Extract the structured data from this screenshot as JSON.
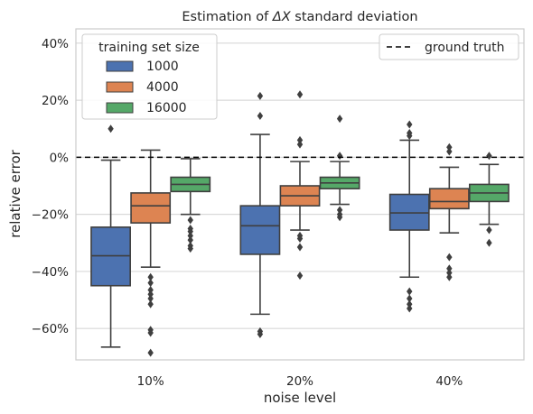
{
  "chart_data": {
    "type": "box",
    "title_prefix": "Estimation of ",
    "title_math": "ΔX",
    "title_suffix": " standard deviation",
    "xlabel": "noise level",
    "ylabel": "relative error",
    "categories": [
      "10%",
      "20%",
      "40%"
    ],
    "ylim": [
      -71,
      45
    ],
    "yticks": [
      -60,
      -40,
      -20,
      0,
      20,
      40
    ],
    "ytick_labels": [
      "−60%",
      "−40%",
      "−20%",
      "0%",
      "20%",
      "40%"
    ],
    "grid": "horizontal",
    "legend_title": "training set size",
    "legend_placement": "top-left",
    "reference_legend_placement": "top-right",
    "reference_line": {
      "value": 0,
      "label": "ground truth",
      "style": "dashed",
      "color": "#000000"
    },
    "series": [
      {
        "name": "1000",
        "color": "#4c72b0",
        "boxes": [
          {
            "whisker_low": -66.5,
            "q1": -45,
            "median": -34.5,
            "q3": -24.5,
            "whisker_high": -1,
            "outliers": [
              10
            ]
          },
          {
            "whisker_low": -55,
            "q1": -34,
            "median": -24,
            "q3": -17,
            "whisker_high": 8,
            "outliers": [
              21.5,
              14.5,
              -61,
              -62
            ]
          },
          {
            "whisker_low": -42,
            "q1": -25.5,
            "median": -19.5,
            "q3": -13,
            "whisker_high": 6,
            "outliers": [
              11.5,
              8.5,
              7.5,
              -47,
              -49.5,
              -51.5,
              -53
            ]
          }
        ]
      },
      {
        "name": "4000",
        "color": "#dd8452",
        "boxes": [
          {
            "whisker_low": -38.5,
            "q1": -23,
            "median": -17,
            "q3": -12.5,
            "whisker_high": 2.5,
            "outliers": [
              -42,
              -44,
              -46.5,
              -48,
              -49.5,
              -51.5,
              -60.5,
              -61.5,
              -68.5
            ]
          },
          {
            "whisker_low": -25.5,
            "q1": -17,
            "median": -13.5,
            "q3": -10,
            "whisker_high": -1.5,
            "outliers": [
              22,
              6,
              4.5,
              -27.5,
              -28.5,
              -31.5,
              -41.5
            ]
          },
          {
            "whisker_low": -26.5,
            "q1": -18,
            "median": -15.5,
            "q3": -11,
            "whisker_high": -3.5,
            "outliers": [
              3.5,
              2,
              -35,
              -39,
              -40.5,
              -42
            ]
          }
        ]
      },
      {
        "name": "16000",
        "color": "#55a868",
        "boxes": [
          {
            "whisker_low": -20,
            "q1": -12,
            "median": -9.5,
            "q3": -7,
            "whisker_high": -0.5,
            "outliers": [
              -22,
              -25,
              -26,
              -27.5,
              -29,
              -31,
              -32
            ]
          },
          {
            "whisker_low": -16.5,
            "q1": -11,
            "median": -9,
            "q3": -7,
            "whisker_high": -1.5,
            "outliers": [
              13.5,
              0.5,
              -18.5,
              -20,
              -21
            ]
          },
          {
            "whisker_low": -23.5,
            "q1": -15.5,
            "median": -12.5,
            "q3": -9.5,
            "whisker_high": -2.5,
            "outliers": [
              0.5,
              -25.5,
              -30
            ]
          }
        ]
      }
    ]
  }
}
